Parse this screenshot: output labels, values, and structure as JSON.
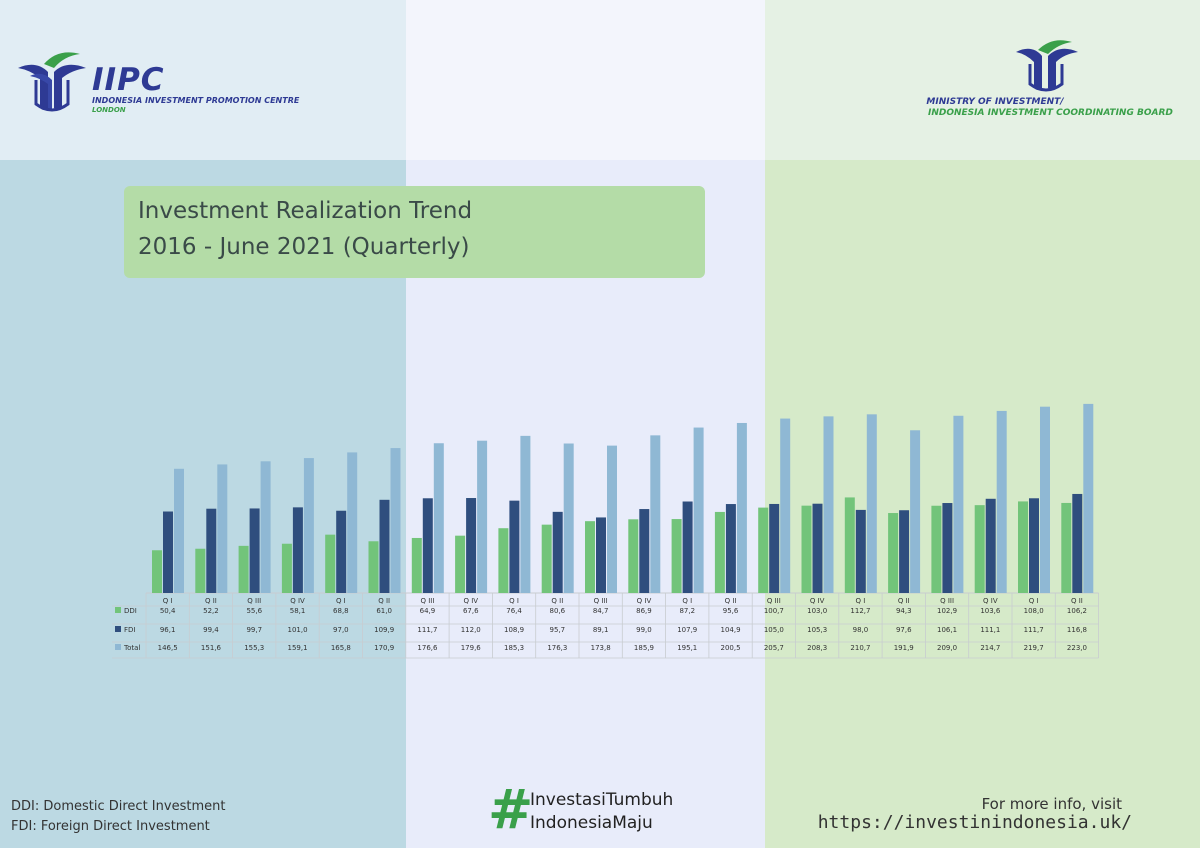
{
  "header": {
    "left_logo": {
      "icon": "iipc-leaf-logo-icon",
      "name": "IIPC",
      "subtitle": "INDONESIA INVESTMENT PROMOTION CENTRE",
      "city": "LONDON"
    },
    "right_logo": {
      "icon": "ministry-leaf-logo-icon",
      "line1": "MINISTRY OF INVESTMENT/",
      "line2": "INDONESIA INVESTMENT COORDINATING BOARD"
    }
  },
  "title": {
    "line1": "Investment Realization Trend",
    "line2": "2016 - June 2021 (Quarterly)"
  },
  "footer": {
    "abbr_ddi": "DDI: Domestic Direct Investment",
    "abbr_fdi": "FDI: Foreign Direct Investment",
    "hashtag_symbol": "#",
    "hashtag_line1": "InvestasiTumbuh",
    "hashtag_line2": "IndonesiaMaju",
    "info_line1": "For more info, visit",
    "info_line2": "https://investinindonesia.uk/"
  },
  "colors": {
    "ddi": "#72c47a",
    "fdi": "#2f4e7e",
    "total": "#8fb8d4",
    "accent_green": "#3aa04a",
    "brand_blue": "#2e3a94"
  },
  "chart_data": {
    "type": "bar",
    "title": "Investment Realization Trend 2016 - June 2021 (Quarterly)",
    "categories": [
      "Q I",
      "Q II",
      "Q III",
      "Q IV",
      "Q I",
      "Q II",
      "Q III",
      "Q IV",
      "Q I",
      "Q II",
      "Q III",
      "Q IV",
      "Q I",
      "Q II",
      "Q III",
      "Q IV",
      "Q I",
      "Q II",
      "Q III",
      "Q IV",
      "Q I",
      "Q II"
    ],
    "series": [
      {
        "name": "DDI",
        "values": [
          "50,4",
          "52,2",
          "55,6",
          "58,1",
          "68,8",
          "61,0",
          "64,9",
          "67,6",
          "76,4",
          "80,6",
          "84,7",
          "86,9",
          "87,2",
          "95,6",
          "100,7",
          "103,0",
          "112,7",
          "94,3",
          "102,9",
          "103,6",
          "108,0",
          "106,2"
        ]
      },
      {
        "name": "FDI",
        "values": [
          "96,1",
          "99,4",
          "99,7",
          "101,0",
          "97,0",
          "109,9",
          "111,7",
          "112,0",
          "108,9",
          "95,7",
          "89,1",
          "99,0",
          "107,9",
          "104,9",
          "105,0",
          "105,3",
          "98,0",
          "97,6",
          "106,1",
          "111,1",
          "111,7",
          "116,8"
        ]
      },
      {
        "name": "Total",
        "values": [
          "146,5",
          "151,6",
          "155,3",
          "159,1",
          "165,8",
          "170,9",
          "176,6",
          "179,6",
          "185,3",
          "176,3",
          "173,8",
          "185,9",
          "195,1",
          "200,5",
          "205,7",
          "208,3",
          "210,7",
          "191,9",
          "209,0",
          "214,7",
          "219,7",
          "223,0"
        ]
      }
    ],
    "ylim": [
      0,
      260
    ],
    "legend": "table-left",
    "grid": false
  }
}
